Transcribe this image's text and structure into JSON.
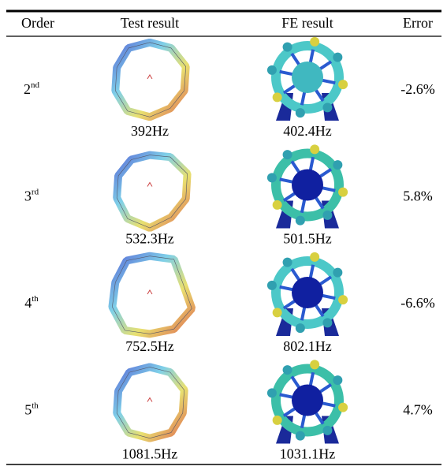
{
  "table": {
    "header": [
      "Order",
      "Test result",
      "FE result",
      "Error"
    ],
    "rows": [
      {
        "order": "2",
        "suffix": "nd",
        "test": "392Hz",
        "fe": "402.4Hz",
        "error": "-2.6%"
      },
      {
        "order": "3",
        "suffix": "rd",
        "test": "532.3Hz",
        "fe": "501.5Hz",
        "error": "5.8%"
      },
      {
        "order": "4",
        "suffix": "th",
        "test": "752.5Hz",
        "fe": "802.1Hz",
        "error": "-6.6%"
      },
      {
        "order": "5",
        "suffix": "th",
        "test": "1081.5Hz",
        "fe": "1031.1Hz",
        "error": "4.7%"
      }
    ]
  }
}
